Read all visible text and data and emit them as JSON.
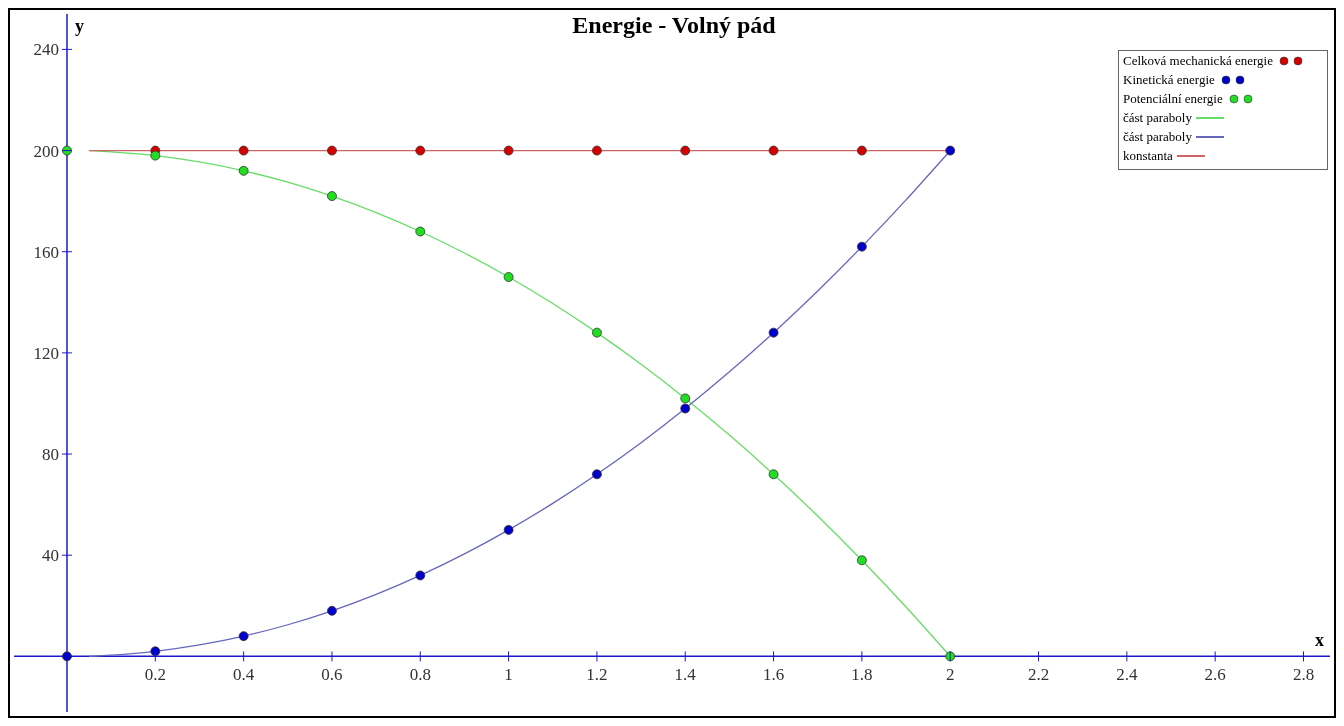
{
  "chart_data": {
    "type": "scatter",
    "title": "Energie - Volný pád",
    "xlabel": "x",
    "ylabel": "y",
    "xlim": [
      -0.12,
      2.86
    ],
    "ylim": [
      -22,
      254
    ],
    "xticks": [
      0.2,
      0.4,
      0.6,
      0.8,
      1,
      1.2,
      1.4,
      1.6,
      1.8,
      2,
      2.2,
      2.4,
      2.6,
      2.8
    ],
    "yticks": [
      40,
      80,
      120,
      160,
      200,
      240
    ],
    "grid": false,
    "legend": "top right",
    "marker": "circle",
    "series": [
      {
        "name": "Celková mechanická energie",
        "type": "scatter",
        "color": "#d40000",
        "x": [
          0.2,
          0.4,
          0.6,
          0.8,
          1,
          1.2,
          1.4,
          1.6,
          1.8
        ],
        "values": [
          200,
          200,
          200,
          200,
          200,
          200,
          200,
          200,
          200
        ]
      },
      {
        "name": "Kinetická energie",
        "type": "scatter",
        "color": "#0000cc",
        "x": [
          0,
          0.2,
          0.4,
          0.6,
          0.8,
          1,
          1.2,
          1.4,
          1.6,
          1.8,
          2
        ],
        "values": [
          0,
          2,
          8,
          18,
          32,
          50,
          72,
          98,
          128,
          162,
          200
        ]
      },
      {
        "name": "Potenciální energie",
        "type": "scatter",
        "color": "#22dd22",
        "x": [
          0,
          0.2,
          0.4,
          0.6,
          0.8,
          1,
          1.2,
          1.4,
          1.6,
          1.8,
          2
        ],
        "values": [
          200,
          198,
          192,
          182,
          168,
          150,
          128,
          102,
          72,
          38,
          0
        ]
      },
      {
        "name": "část paraboly",
        "type": "line",
        "marker": "none",
        "color": "#66dd66",
        "x": [
          0.05,
          0.1,
          0.2,
          0.3,
          0.4,
          0.5,
          0.6,
          0.7,
          0.8,
          0.9,
          1,
          1.1,
          1.2,
          1.3,
          1.4,
          1.5,
          1.6,
          1.7,
          1.8,
          1.9,
          2
        ],
        "values": [
          200,
          199.5,
          198,
          195.5,
          192,
          187.5,
          182,
          175.5,
          168,
          159.5,
          150,
          139.5,
          128,
          115.5,
          102,
          87.5,
          72,
          55.5,
          38,
          19.5,
          0
        ]
      },
      {
        "name": "část paraboly",
        "type": "line",
        "marker": "none",
        "color": "#6666bb",
        "x": [
          0.05,
          0.1,
          0.2,
          0.3,
          0.4,
          0.5,
          0.6,
          0.7,
          0.8,
          0.9,
          1,
          1.1,
          1.2,
          1.3,
          1.4,
          1.5,
          1.6,
          1.7,
          1.8,
          1.9,
          2
        ],
        "values": [
          0,
          0.5,
          2,
          4.5,
          8,
          12.5,
          18,
          24.5,
          32,
          40.5,
          50,
          60.5,
          72,
          84.5,
          98,
          112.5,
          128,
          144.5,
          162,
          180.5,
          200
        ]
      },
      {
        "name": "konstanta",
        "type": "line",
        "marker": "none",
        "color": "#cc6666",
        "x": [
          0.05,
          2
        ],
        "values": [
          200,
          200
        ]
      }
    ]
  }
}
